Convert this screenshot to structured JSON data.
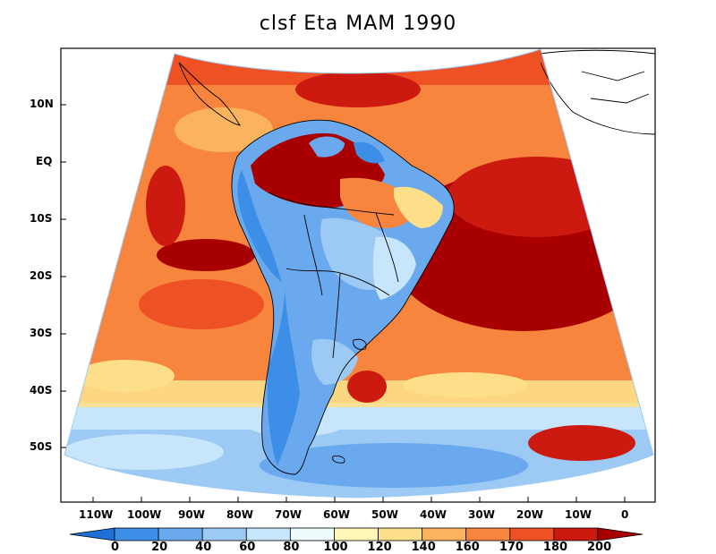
{
  "title": "clsf Eta MAM 1990",
  "axes": {
    "lat_ticks": [
      "10N",
      "EQ",
      "10S",
      "20S",
      "30S",
      "40S",
      "50S"
    ],
    "lon_ticks": [
      "110W",
      "100W",
      "90W",
      "80W",
      "70W",
      "60W",
      "50W",
      "40W",
      "30W",
      "20W",
      "10W",
      "0"
    ]
  },
  "colorbar": {
    "labels": [
      "0",
      "20",
      "40",
      "60",
      "80",
      "100",
      "120",
      "140",
      "160",
      "170",
      "180",
      "200"
    ],
    "colors": [
      "#1e6fd6",
      "#3d8ee6",
      "#6aa9ee",
      "#9dcaf5",
      "#c8e6fb",
      "#eefcfe",
      "#fff6b8",
      "#fddf8a",
      "#fbb35e",
      "#f7853e",
      "#ee5224",
      "#cc1a10",
      "#a80000"
    ]
  },
  "palette": {
    "frame": "#000000",
    "coast": "#000000"
  }
}
